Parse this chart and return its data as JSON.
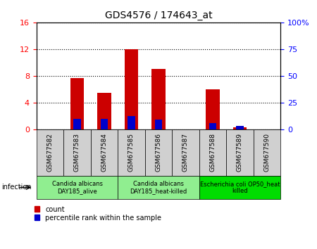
{
  "title": "GDS4576 / 174643_at",
  "samples": [
    "GSM677582",
    "GSM677583",
    "GSM677584",
    "GSM677585",
    "GSM677586",
    "GSM677587",
    "GSM677588",
    "GSM677589",
    "GSM677590"
  ],
  "count_values": [
    0,
    7.7,
    5.5,
    12.0,
    9.0,
    0,
    6.0,
    0.3,
    0
  ],
  "percentile_values": [
    0,
    10,
    10,
    12.5,
    9.4,
    0,
    6.25,
    3.1,
    0
  ],
  "ylim_left": [
    0,
    16
  ],
  "ylim_right": [
    0,
    100
  ],
  "yticks_left": [
    0,
    4,
    8,
    12,
    16
  ],
  "ytick_labels_left": [
    "0",
    "4",
    "8",
    "12",
    "16"
  ],
  "yticks_right": [
    0,
    25,
    50,
    75,
    100
  ],
  "ytick_labels_right": [
    "0",
    "25",
    "50",
    "75",
    "100%"
  ],
  "groups": [
    {
      "label": "Candida albicans\nDAY185_alive",
      "start": 0,
      "end": 2,
      "color": "#90EE90"
    },
    {
      "label": "Candida albicans\nDAY185_heat-killed",
      "start": 3,
      "end": 5,
      "color": "#90EE90"
    },
    {
      "label": "Escherichia coli OP50_heat\nkilled",
      "start": 6,
      "end": 8,
      "color": "#00DD00"
    }
  ],
  "group_factor": "infection",
  "bar_color_count": "#CC0000",
  "bar_color_percentile": "#0000CC",
  "bar_width": 0.5,
  "background_plot": "#ffffff",
  "background_sample": "#d0d0d0",
  "grid_color": "#000000",
  "title_fontsize": 10,
  "sample_fontsize": 6.5,
  "group_fontsize": 6.0,
  "legend_fontsize": 7.0
}
